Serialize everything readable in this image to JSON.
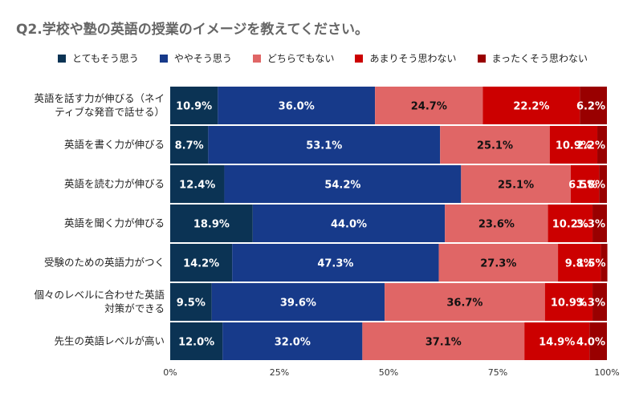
{
  "title": "Q2.学校や塾の英語の授業のイメージを教えてください。",
  "chart_data": {
    "type": "bar",
    "orientation": "horizontal",
    "stacked": "percent",
    "title": "Q2.学校や塾の英語の授業のイメージを教えてください。",
    "categories": [
      [
        "英語を話す力が伸びる（ネイ",
        "ティブな発音で話せる）"
      ],
      [
        "英語を書く力が伸びる"
      ],
      [
        "英語を読む力が伸びる"
      ],
      [
        "英語を聞く力が伸びる"
      ],
      [
        "受験のための英語力がつく"
      ],
      [
        "個々のレベルに合わせた英語",
        "対策ができる"
      ],
      [
        "先生の英語レベルが高い"
      ]
    ],
    "series": [
      {
        "name": "とてもそう思う",
        "color": "#0b3354",
        "text_color": "#ffffff",
        "values": [
          10.9,
          8.7,
          12.4,
          18.9,
          14.2,
          9.5,
          12.0
        ],
        "labels": [
          "10.9%",
          "8.7%",
          "12.4%",
          "18.9%",
          "14.2%",
          "9.5%",
          "12.0%"
        ]
      },
      {
        "name": "ややそう思う",
        "color": "#173a8a",
        "text_color": "#ffffff",
        "values": [
          36.0,
          53.1,
          54.2,
          44.0,
          47.3,
          39.6,
          32.0
        ],
        "labels": [
          "36.0%",
          "53.1%",
          "54.2%",
          "44.0%",
          "47.3%",
          "39.6%",
          "32.0%"
        ]
      },
      {
        "name": "どちらでもない",
        "color": "#e06666",
        "text_color": "#111111",
        "values": [
          24.7,
          25.1,
          25.1,
          23.6,
          27.3,
          36.7,
          37.1
        ],
        "labels": [
          "24.7%",
          "25.1%",
          "25.1%",
          "23.6%",
          "27.3%",
          "36.7%",
          "37.1%"
        ]
      },
      {
        "name": "あまりそう思わない",
        "color": "#cc0000",
        "text_color": "#ffffff",
        "values": [
          22.2,
          10.9,
          6.5,
          10.2,
          9.8,
          10.9,
          14.9
        ],
        "labels": [
          "22.2%",
          "10.9%",
          "6.5%",
          "10.2%",
          "9.8%",
          "10.9%",
          "14.9%"
        ]
      },
      {
        "name": "まったくそう思わない",
        "color": "#990000",
        "text_color": "#ffffff",
        "values": [
          6.2,
          2.2,
          1.8,
          3.3,
          1.5,
          3.3,
          4.0
        ],
        "labels": [
          "6.2%",
          "2.2%",
          "1.8%",
          "3.3%",
          "1.5%",
          "3.3%",
          "4.0%"
        ]
      }
    ],
    "xlim": [
      0,
      100
    ],
    "xticks": [
      "0%",
      "25%",
      "50%",
      "75%",
      "100%"
    ],
    "legend": "top",
    "grid": false
  }
}
